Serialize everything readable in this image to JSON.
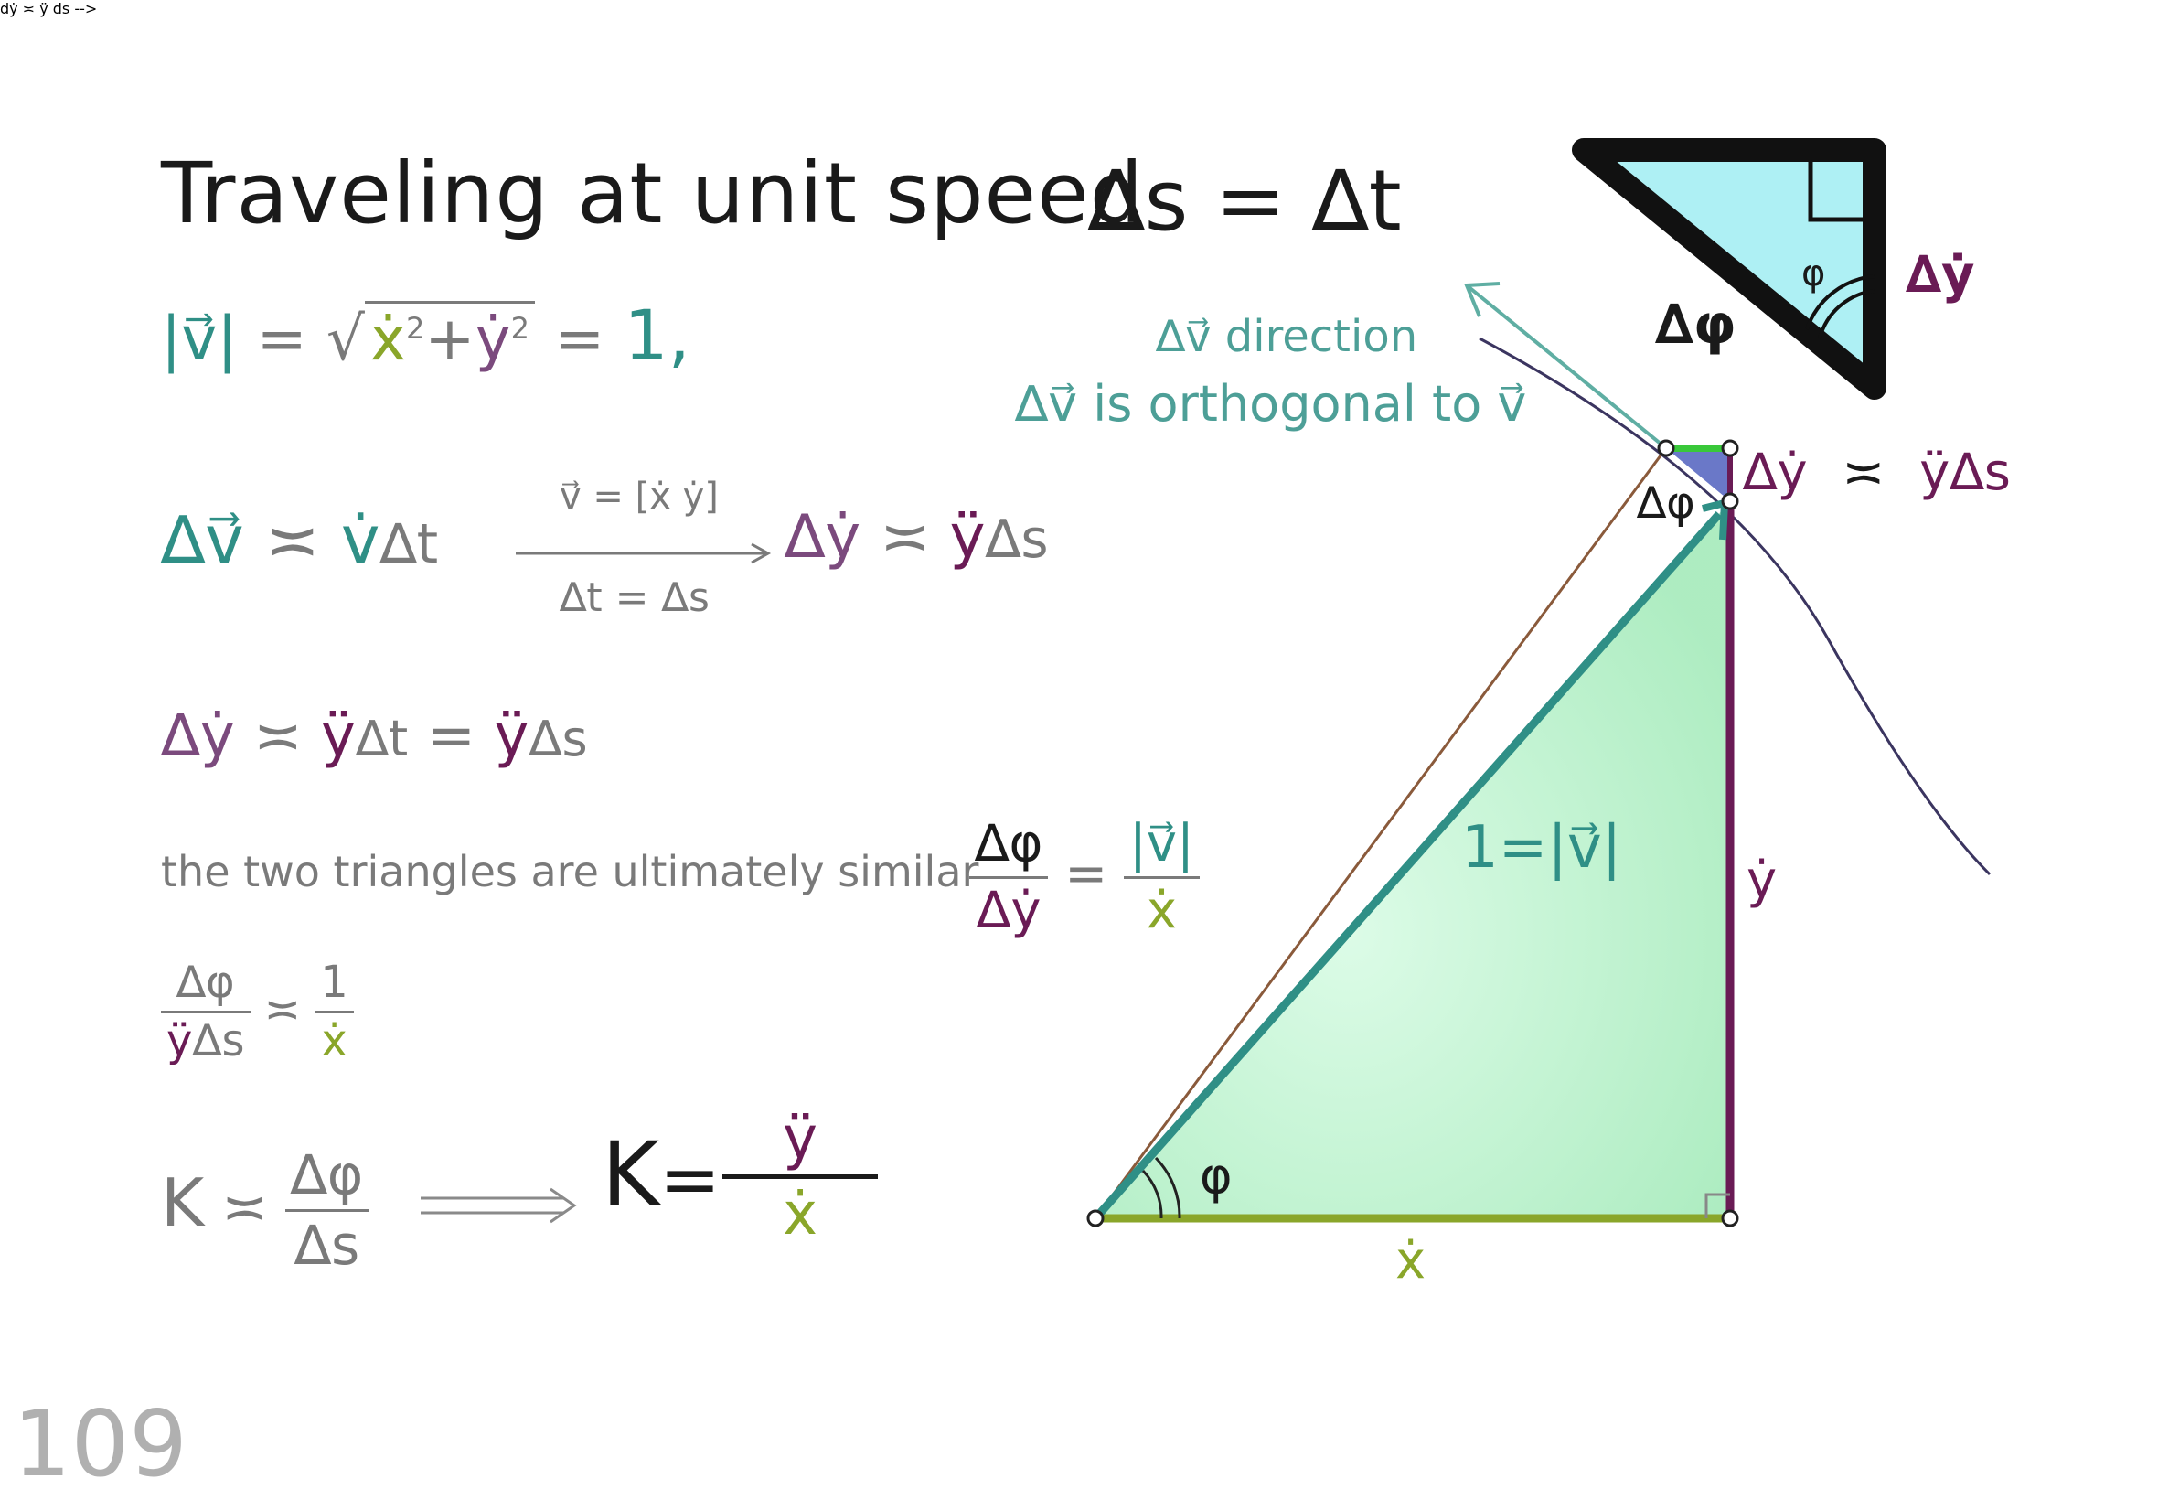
{
  "title": "Traveling at unit speed",
  "ds_dt": "∆s = ∆t",
  "speed_eq": {
    "lhs": "|v⃗|",
    "eq1": "=",
    "sqrt_x": "ẋ",
    "sqrt_plus": "+",
    "sqrt_y": "ẏ",
    "eq2": "=",
    "rhs": "1,"
  },
  "dv_eq": {
    "lhs": "∆v⃗",
    "asym": "≍",
    "vdot": "v̇",
    "dt": "∆t",
    "arrow_top": "v⃗ = [ẋ ẏ]",
    "arrow_bottom": "∆t = ∆s",
    "dy": "∆ẏ",
    "asym2": "≍",
    "ydd": "ÿ",
    "ds": "∆s"
  },
  "dy_eq": {
    "dy": "∆ẏ",
    "asym": "≍",
    "ydd1": "ÿ",
    "dt": "∆t",
    "eq": "=",
    "ydd2": "ÿ",
    "ds": "∆s"
  },
  "similar_text": "the two triangles are ultimately similar",
  "similar_frac": {
    "num_left": "∆φ",
    "den_left": "∆ẏ",
    "eq": "=",
    "num_right": "|v⃗|",
    "den_right": "ẋ"
  },
  "ratio_eq": {
    "num_left": "∆φ",
    "den_left_y": "ÿ",
    "den_left_s": "∆s",
    "asym": "≍",
    "num_right": "1",
    "den_right": "ẋ"
  },
  "kappa_eq": {
    "k": "K",
    "asym": "≍",
    "num": "∆φ",
    "den": "∆s",
    "k2": "K",
    "eq": "=",
    "num2": "ÿ",
    "den2": "ẋ"
  },
  "page_number": "109",
  "diagram": {
    "dv_direction": "∆v⃗ direction",
    "orthogonal": "∆v⃗ is orthogonal to v⃗",
    "dy_label": "∆ẏ",
    "asym": "≍",
    "ydd_ds": "ÿ∆s",
    "dphi_small": "∆φ",
    "hyp_label": "1=|v⃗|",
    "ydot": "ẏ",
    "xdot": "ẋ",
    "phi": "φ",
    "inset_phi": "φ",
    "inset_dphi": "∆φ",
    "inset_dy": "∆ẏ"
  },
  "colors": {
    "teal": "#2f8f86",
    "purple": "#6a1b55",
    "olive": "#8aa62a",
    "green_fill": "#a8eec0",
    "cyan_fill": "#aef0f4",
    "curve": "#3b3560",
    "brown": "#8a5a3b"
  }
}
